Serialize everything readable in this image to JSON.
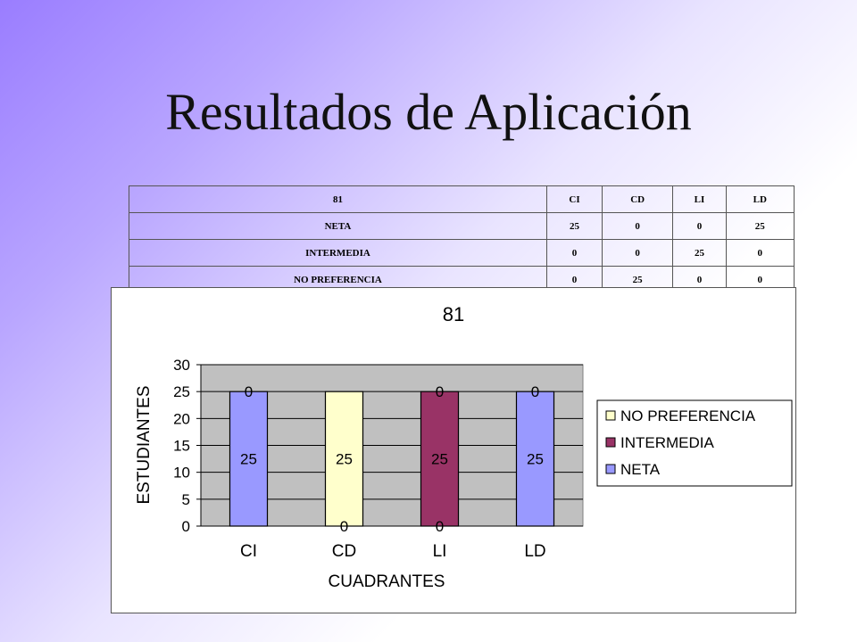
{
  "slide": {
    "title": "Resultados de Aplicación"
  },
  "table": {
    "header": [
      "81",
      "CI",
      "CD",
      "LI",
      "LD"
    ],
    "rows": [
      [
        "NETA",
        "25",
        "0",
        "0",
        "25"
      ],
      [
        "INTERMEDIA",
        "0",
        "0",
        "25",
        "0"
      ],
      [
        "NO PREFERENCIA",
        "0",
        "25",
        "0",
        "0"
      ]
    ]
  },
  "chart_data": {
    "type": "bar",
    "stacked": true,
    "title": "81",
    "xlabel": "CUADRANTES",
    "ylabel": "ESTUDIANTES",
    "ylim": [
      0,
      30
    ],
    "yticks": [
      0,
      5,
      10,
      15,
      20,
      25,
      30
    ],
    "categories": [
      "CI",
      "CD",
      "LI",
      "LD"
    ],
    "series": [
      {
        "name": "NETA",
        "values": [
          25,
          0,
          0,
          25
        ],
        "color": "#9999ff"
      },
      {
        "name": "INTERMEDIA",
        "values": [
          0,
          0,
          25,
          0
        ],
        "color": "#993366"
      },
      {
        "name": "NO PREFERENCIA",
        "values": [
          0,
          25,
          0,
          0
        ],
        "color": "#ffffcc"
      }
    ],
    "grid": true,
    "plot_background": "#c0c0c0",
    "legend_position": "right",
    "legend_order": [
      "NO PREFERENCIA",
      "INTERMEDIA",
      "NETA"
    ]
  }
}
